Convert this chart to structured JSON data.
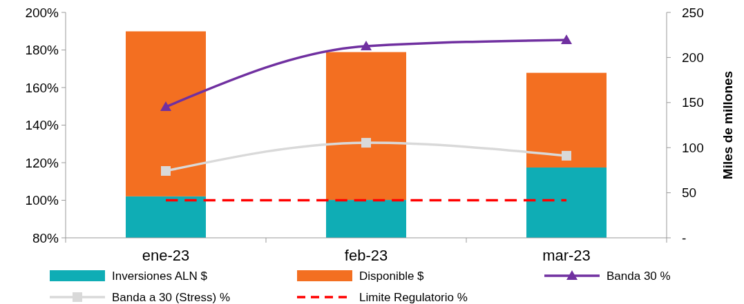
{
  "chart_data": {
    "type": "bar",
    "stacked": true,
    "categories": [
      "ene-23",
      "feb-23",
      "mar-23"
    ],
    "ylim": [
      80,
      200
    ],
    "yticks": [
      {
        "value": 80,
        "label": "80%"
      },
      {
        "value": 100,
        "label": "100%"
      },
      {
        "value": 120,
        "label": "120%"
      },
      {
        "value": 140,
        "label": "140%"
      },
      {
        "value": 160,
        "label": "160%"
      },
      {
        "value": 180,
        "label": "180%"
      },
      {
        "value": 200,
        "label": "200%"
      }
    ],
    "y2lim": [
      0,
      250
    ],
    "y2ticks": [
      {
        "value": 0,
        "label": "-"
      },
      50,
      100,
      150,
      200,
      250
    ],
    "y2label": "Miles de millones",
    "legend": "bottom",
    "series": [
      {
        "name": "Inversiones ALN $",
        "axis": "y2",
        "color": "#0fadb5",
        "values": [
          46,
          42,
          78
        ]
      },
      {
        "name": "Disponible $",
        "axis": "y2",
        "color": "#f36f21",
        "values": [
          183,
          164,
          105
        ]
      },
      {
        "name": "Banda 30 %",
        "type": "line",
        "color": "#7030a0",
        "marker": "triangle",
        "values": [
          149.7,
          182,
          185.3
        ]
      },
      {
        "name": "Banda a 30 (Stress) %",
        "type": "line",
        "color": "#d9d9d9",
        "marker": "square",
        "values": [
          115.6,
          130.6,
          123.7
        ]
      },
      {
        "name": "Limite Regulatorio %",
        "type": "line",
        "color": "#ff0000",
        "marker": "none",
        "line_style": "dashed",
        "values": [
          100,
          100,
          100
        ]
      }
    ]
  }
}
